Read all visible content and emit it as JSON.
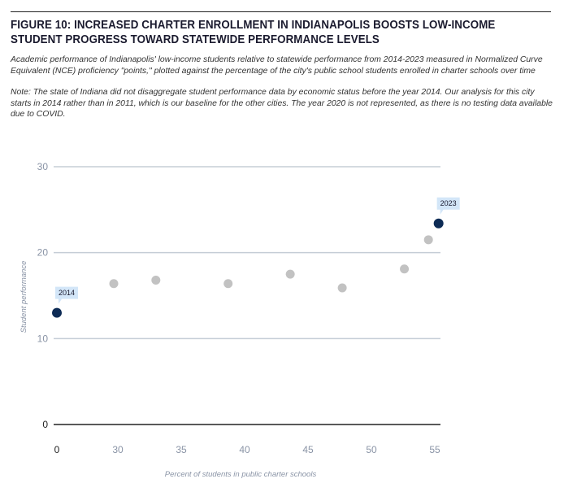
{
  "figure": {
    "title": "FIGURE 10: INCREASED CHARTER ENROLLMENT IN INDIANAPOLIS BOOSTS LOW-INCOME STUDENT PROGRESS TOWARD STATEWIDE PERFORMANCE LEVELS",
    "subtitle": "Academic performance of Indianapolis' low-income students relative to statewide performance from 2014-2023 measured in Normalized Curve Equivalent (NCE) proficiency \"points,\" plotted against the percentage of the city's public school students enrolled in charter schools over time",
    "note": "Note: The state of Indiana did not disaggregate student performance data by economic status before the year 2014. Our analysis for this city starts in 2014 rather than in 2011, which is our baseline for the other cities. The year 2020 is not represented, as there is no testing data available due to COVID."
  },
  "chart_data": {
    "type": "scatter",
    "title": "",
    "xlabel": "Percent of students in public charter schools",
    "ylabel": "Student performance",
    "x_ticks": [
      0,
      30,
      35,
      40,
      45,
      50,
      55
    ],
    "y_ticks": [
      0,
      10,
      20,
      30
    ],
    "ylim": [
      0,
      30
    ],
    "grid": true,
    "colors": {
      "highlight": "#0d2b55",
      "point": "#c2c2c2",
      "callout": "#d3e6f8",
      "grid": "#c5cdd6",
      "baseline": "#222222"
    },
    "points": [
      {
        "x": 0,
        "y": 13.0,
        "label": "2014",
        "highlight": true
      },
      {
        "x": 28.0,
        "y": 16.4
      },
      {
        "x": 33.0,
        "y": 16.8
      },
      {
        "x": 38.7,
        "y": 16.4
      },
      {
        "x": 43.6,
        "y": 17.5
      },
      {
        "x": 47.7,
        "y": 15.9
      },
      {
        "x": 52.6,
        "y": 18.1
      },
      {
        "x": 54.5,
        "y": 21.5
      },
      {
        "x": 55.3,
        "y": 23.4,
        "label": "2023",
        "highlight": true
      }
    ]
  }
}
